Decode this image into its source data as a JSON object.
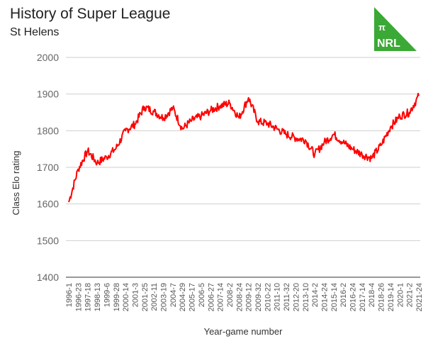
{
  "header": {
    "title": "History of Super League",
    "subtitle": "St Helens"
  },
  "logo": {
    "symbol": "π",
    "text": "NRL",
    "color": "#3aa935",
    "icon": "pi-nrl-logo"
  },
  "chart_data": {
    "type": "line",
    "title": "History of Super League",
    "subtitle": "St Helens",
    "xlabel": "Year-game number",
    "ylabel": "Class Elo rating",
    "ylim": [
      1400,
      2000
    ],
    "yticks": [
      1400,
      1500,
      1600,
      1700,
      1800,
      1900,
      2000
    ],
    "grid": true,
    "line_color": "#ff0000",
    "x_tick_labels": [
      "1996-1",
      "1996-23",
      "1997-18",
      "1998-13",
      "1999-6",
      "1999-28",
      "2000-14",
      "2001-3",
      "2001-25",
      "2002-11",
      "2003-19",
      "2004-7",
      "2004-29",
      "2005-17",
      "2006-5",
      "2006-27",
      "2007-14",
      "2008-2",
      "2008-24",
      "2009-12",
      "2009-32",
      "2010-22",
      "2011-10",
      "2011-32",
      "2012-20",
      "2013-10",
      "2014-2",
      "2014-24",
      "2015-14",
      "2016-2",
      "2016-24",
      "2017-14",
      "2018-4",
      "2018-26",
      "2019-14",
      "2020-1",
      "2021-2",
      "2021-24"
    ],
    "series": [
      {
        "values": [
          {
            "x": "1996-1",
            "y": 1605
          },
          {
            "x": "1996-23",
            "y": 1695
          },
          {
            "x": "1997-18",
            "y": 1745
          },
          {
            "x": "1998-13",
            "y": 1712
          },
          {
            "x": "1999-6",
            "y": 1728
          },
          {
            "x": "1999-28",
            "y": 1752
          },
          {
            "x": "2000-14",
            "y": 1800
          },
          {
            "x": "2001-3",
            "y": 1818
          },
          {
            "x": "2001-25",
            "y": 1865
          },
          {
            "x": "2002-11",
            "y": 1852
          },
          {
            "x": "2003-19",
            "y": 1835
          },
          {
            "x": "2004-7",
            "y": 1862
          },
          {
            "x": "2004-29",
            "y": 1805
          },
          {
            "x": "2005-17",
            "y": 1828
          },
          {
            "x": "2006-5",
            "y": 1840
          },
          {
            "x": "2006-27",
            "y": 1855
          },
          {
            "x": "2007-14",
            "y": 1868
          },
          {
            "x": "2008-2",
            "y": 1875
          },
          {
            "x": "2008-24",
            "y": 1835
          },
          {
            "x": "2009-12",
            "y": 1890
          },
          {
            "x": "2009-32",
            "y": 1825
          },
          {
            "x": "2010-22",
            "y": 1820
          },
          {
            "x": "2011-10",
            "y": 1805
          },
          {
            "x": "2011-32",
            "y": 1790
          },
          {
            "x": "2012-20",
            "y": 1780
          },
          {
            "x": "2013-10",
            "y": 1775
          },
          {
            "x": "2014-2",
            "y": 1735
          },
          {
            "x": "2014-24",
            "y": 1768
          },
          {
            "x": "2015-14",
            "y": 1790
          },
          {
            "x": "2016-2",
            "y": 1768
          },
          {
            "x": "2016-24",
            "y": 1750
          },
          {
            "x": "2017-14",
            "y": 1735
          },
          {
            "x": "2018-4",
            "y": 1725
          },
          {
            "x": "2018-26",
            "y": 1760
          },
          {
            "x": "2019-14",
            "y": 1810
          },
          {
            "x": "2020-1",
            "y": 1840
          },
          {
            "x": "2021-2",
            "y": 1850
          },
          {
            "x": "2021-24",
            "y": 1895
          }
        ]
      }
    ]
  }
}
